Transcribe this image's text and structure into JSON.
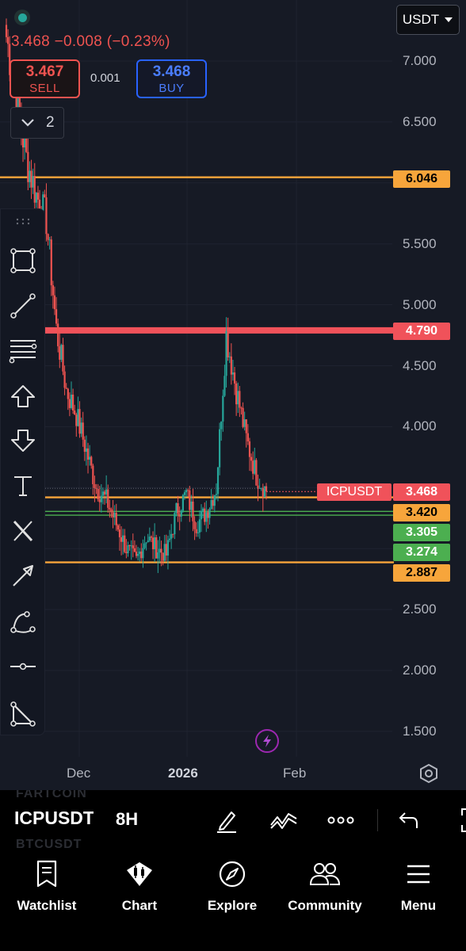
{
  "currency": "USDT",
  "ticker": {
    "last": "3.468",
    "change": "−0.008",
    "change_pct": "(−0.23%)"
  },
  "trade": {
    "sell_price": "3.467",
    "sell_label": "SELL",
    "quantity": "0.001",
    "buy_price": "3.468",
    "buy_label": "BUY"
  },
  "indicators_count": "2",
  "price_axis": [
    "7.000",
    "6.500",
    "5.500",
    "5.000",
    "4.500",
    "4.000",
    "2.500",
    "2.000",
    "1.500"
  ],
  "time_axis": [
    {
      "label": "Dec",
      "bold": false
    },
    {
      "label": "2026",
      "bold": true
    },
    {
      "label": "Feb",
      "bold": false
    }
  ],
  "horizontal_lines": [
    {
      "price": "6.046",
      "color": "#f7a53b",
      "text_color": "#000000"
    },
    {
      "price": "4.790",
      "color": "#f0525a",
      "text_color": "#ffffff"
    },
    {
      "price": "3.420",
      "color": "#f7a53b",
      "text_color": "#000000"
    },
    {
      "price": "3.305",
      "color": "#4caf50",
      "text_color": "#ffffff"
    },
    {
      "price": "3.274",
      "color": "#4caf50",
      "text_color": "#ffffff"
    },
    {
      "price": "2.887",
      "color": "#f7a53b",
      "text_color": "#000000"
    }
  ],
  "current_price_label": {
    "symbol": "ICPUSDT",
    "price": "3.468",
    "color": "#f0525a"
  },
  "chart_data": {
    "type": "candlestick",
    "symbol": "ICPUSDT",
    "interval": "8H",
    "ylim": [
      1.3,
      7.3
    ],
    "grid": true,
    "series": [
      {
        "name": "close",
        "values": [
          7.2,
          6.7,
          6.2,
          5.9,
          5.7,
          4.8,
          4.3,
          4.1,
          3.8,
          3.5,
          3.4,
          3.2,
          3.0,
          2.9,
          3.1,
          3.0,
          2.95,
          3.3,
          3.45,
          3.2,
          3.3,
          3.5,
          4.75,
          4.3,
          3.9,
          3.6,
          3.47
        ]
      }
    ]
  },
  "toolbar_tools": [
    "rectangle-icon",
    "trend-line-icon",
    "fib-retracement-icon",
    "arrow-up-icon",
    "arrow-down-icon",
    "text-icon",
    "x-icon",
    "arrow-icon",
    "curve-icon",
    "horizontal-ray-icon",
    "triangle-icon"
  ],
  "bottom_bar": {
    "symbol": "ICPUSDT",
    "interval": "8H",
    "ghost_symbols": [
      "FARTCOIN",
      "BTCUSDT"
    ]
  },
  "nav": [
    {
      "label": "Watchlist",
      "icon": "bookmark-icon"
    },
    {
      "label": "Chart",
      "icon": "chart-icon"
    },
    {
      "label": "Explore",
      "icon": "compass-icon"
    },
    {
      "label": "Community",
      "icon": "community-icon"
    },
    {
      "label": "Menu",
      "icon": "menu-icon"
    }
  ]
}
